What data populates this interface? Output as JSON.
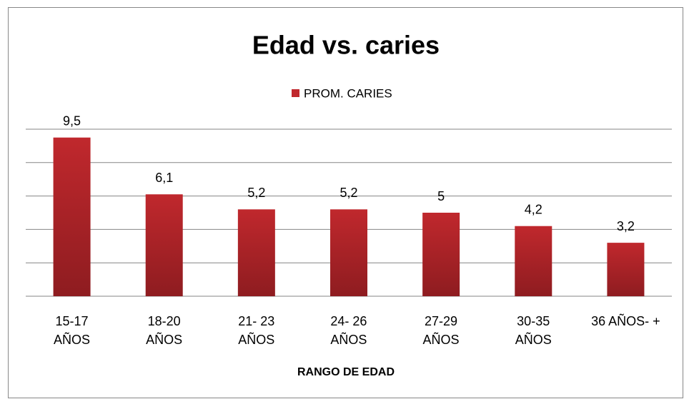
{
  "chart_data": {
    "type": "bar",
    "title": "Edad vs. caries",
    "x_label": "RANGO DE EDAD",
    "categories": [
      "15-17\nAÑOS",
      "18-20\nAÑOS",
      "21- 23\nAÑOS",
      "24- 26\nAÑOS",
      "27-29\nAÑOS",
      "30-35\nAÑOS",
      "36 AÑOS- +"
    ],
    "series": [
      {
        "name": "PROM. CARIES",
        "color": "#c0282d",
        "values": [
          9.5,
          6.1,
          5.2,
          5.2,
          5,
          4.2,
          3.2
        ],
        "value_labels": [
          "9,5",
          "6,1",
          "5,2",
          "5,2",
          "5",
          "4,2",
          "3,2"
        ]
      }
    ],
    "ylim": [
      0,
      10
    ],
    "yticks": [
      0,
      2,
      4,
      6,
      8,
      10
    ],
    "grid": true,
    "legend": "top"
  }
}
